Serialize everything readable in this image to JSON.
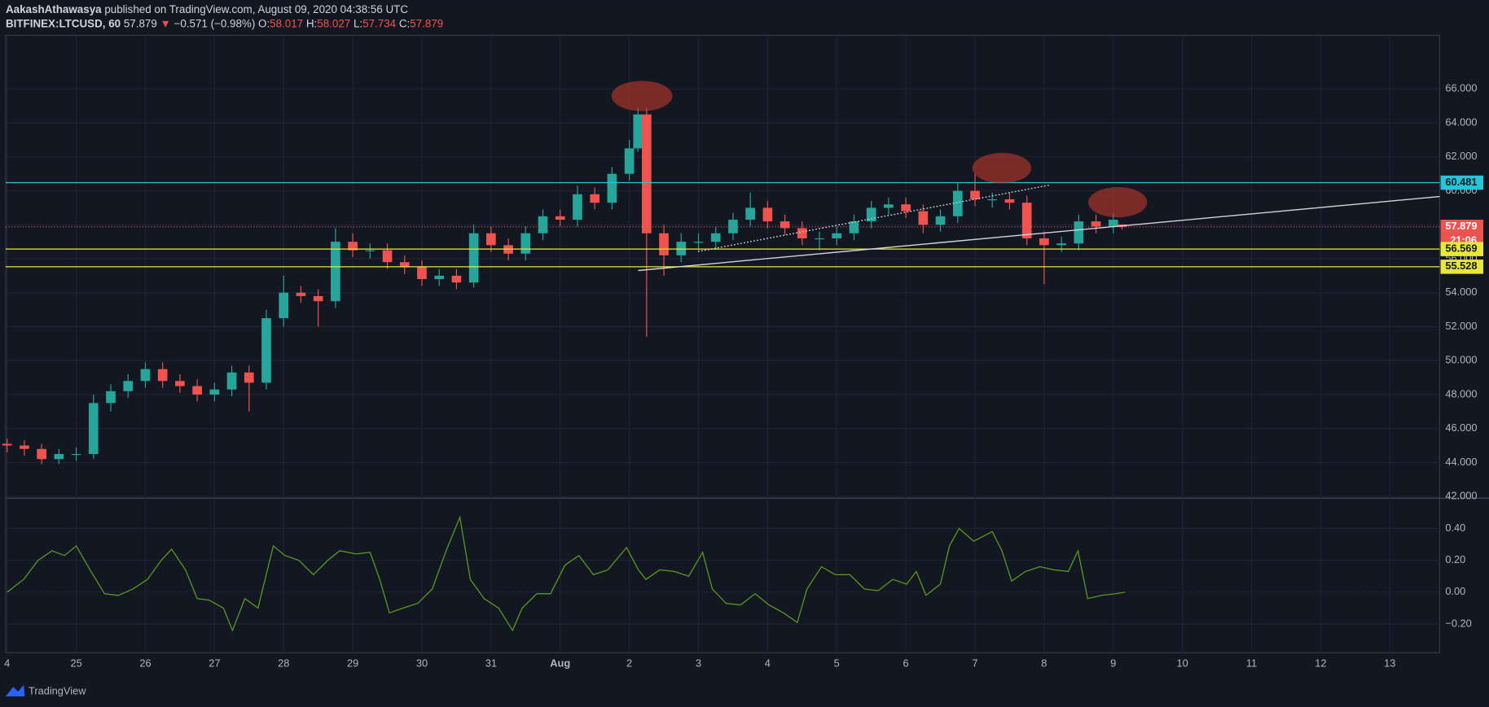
{
  "header": {
    "author": "AakashAthawasya",
    "published": "published on TradingView.com, August 09, 2020 04:38:56 UTC",
    "symbol": "BITFINEX:LTCUSD, 60",
    "last": "57.879",
    "arrow": "▼",
    "change": "−0.571 (−0.98%)",
    "o_label": "O:",
    "o": "58.017",
    "h_label": "H:",
    "h": "58.027",
    "l_label": "L:",
    "l": "57.734",
    "c_label": "C:",
    "c": "57.879"
  },
  "chart_data": [
    {
      "type": "candlestick",
      "up_color": "#26a69a",
      "down_color": "#ef5350",
      "xlim": [
        -0.02,
        20.72
      ],
      "ylim": [
        41.9,
        69.16
      ],
      "yticks": [
        {
          "value": 42,
          "label": "42.000"
        },
        {
          "value": 44,
          "label": "44.000"
        },
        {
          "value": 46,
          "label": "46.000"
        },
        {
          "value": 48,
          "label": "48.000"
        },
        {
          "value": 50,
          "label": "50.000"
        },
        {
          "value": 52,
          "label": "52.000"
        },
        {
          "value": 54,
          "label": "54.000"
        },
        {
          "value": 56,
          "label": "56.000"
        },
        {
          "value": 58,
          "label": "58.000"
        },
        {
          "value": 60,
          "label": "60.000"
        },
        {
          "value": 62,
          "label": "62.000"
        },
        {
          "value": 64,
          "label": "64.000"
        },
        {
          "value": 66,
          "label": "66.000"
        }
      ],
      "x": [
        0,
        0.25,
        0.5,
        0.75,
        1,
        1.25,
        1.5,
        1.75,
        2,
        2.25,
        2.5,
        2.75,
        3,
        3.25,
        3.5,
        3.75,
        4,
        4.25,
        4.5,
        4.75,
        5,
        5.25,
        5.5,
        5.75,
        6,
        6.25,
        6.5,
        6.75,
        7,
        7.25,
        7.5,
        7.75,
        8,
        8.25,
        8.5,
        8.75,
        9,
        9.125,
        9.25,
        9.5,
        9.75,
        10,
        10.25,
        10.5,
        10.75,
        11,
        11.25,
        11.5,
        11.75,
        12,
        12.25,
        12.5,
        12.75,
        13,
        13.25,
        13.5,
        13.75,
        14,
        14.25,
        14.5,
        14.75,
        15,
        15.25,
        15.5,
        15.75,
        16,
        16.125
      ],
      "open": [
        45.1,
        45.0,
        44.8,
        44.2,
        44.5,
        44.5,
        47.5,
        48.2,
        48.8,
        49.5,
        48.8,
        48.5,
        48.0,
        48.3,
        49.3,
        48.7,
        52.5,
        54.0,
        53.8,
        53.5,
        57.0,
        56.5,
        56.5,
        55.8,
        55.5,
        54.8,
        55.0,
        54.6,
        57.5,
        56.8,
        56.3,
        57.5,
        58.5,
        58.3,
        59.8,
        59.3,
        61.0,
        62.5,
        64.5,
        57.5,
        56.2,
        57.0,
        57.0,
        57.5,
        58.3,
        59.0,
        58.2,
        57.8,
        57.2,
        57.2,
        57.5,
        58.2,
        59.0,
        59.2,
        58.8,
        58.0,
        58.5,
        60.0,
        59.5,
        59.5,
        59.3,
        57.2,
        56.8,
        56.9,
        58.2,
        57.9,
        58.017
      ],
      "high": [
        45.4,
        45.3,
        45.1,
        44.8,
        44.9,
        48.0,
        48.6,
        49.2,
        49.9,
        49.9,
        49.2,
        48.9,
        48.7,
        49.7,
        49.7,
        53.0,
        55.0,
        54.4,
        54.2,
        57.8,
        57.5,
        56.9,
        56.9,
        56.2,
        55.9,
        55.4,
        55.4,
        58.0,
        57.9,
        57.2,
        57.9,
        58.9,
        58.9,
        60.3,
        60.2,
        61.4,
        63.0,
        64.9,
        64.9,
        58.0,
        57.5,
        57.5,
        57.9,
        58.7,
        59.9,
        59.4,
        58.6,
        58.2,
        57.6,
        57.9,
        58.6,
        59.4,
        59.6,
        59.6,
        59.2,
        58.9,
        60.5,
        61.0,
        59.9,
        59.9,
        59.7,
        57.6,
        57.3,
        58.6,
        58.6,
        58.7,
        58.027
      ],
      "low": [
        44.6,
        44.4,
        43.9,
        43.9,
        44.1,
        44.2,
        47.0,
        47.8,
        48.4,
        48.4,
        48.1,
        47.6,
        47.6,
        47.9,
        47.0,
        48.3,
        52.0,
        53.4,
        52.0,
        53.1,
        56.1,
        56.0,
        55.4,
        55.1,
        54.4,
        54.4,
        54.2,
        54.3,
        56.4,
        55.9,
        55.9,
        57.1,
        57.9,
        57.9,
        58.9,
        58.9,
        60.6,
        62.3,
        51.4,
        55.0,
        55.8,
        56.5,
        56.6,
        57.1,
        57.9,
        57.8,
        57.4,
        56.8,
        56.5,
        56.8,
        57.1,
        57.8,
        58.6,
        58.4,
        57.5,
        57.6,
        58.1,
        59.1,
        59.0,
        58.9,
        56.8,
        54.5,
        56.4,
        56.5,
        57.5,
        57.5,
        57.734
      ],
      "close": [
        45.0,
        44.8,
        44.2,
        44.5,
        44.5,
        47.5,
        48.2,
        48.8,
        49.5,
        48.8,
        48.5,
        48.0,
        48.3,
        49.3,
        48.7,
        52.5,
        54.0,
        53.8,
        53.5,
        57.0,
        56.5,
        56.5,
        55.8,
        55.5,
        54.8,
        55.0,
        54.6,
        57.5,
        56.8,
        56.3,
        57.5,
        58.5,
        58.3,
        59.8,
        59.3,
        61.0,
        62.5,
        64.5,
        57.5,
        56.2,
        57.0,
        57.0,
        57.5,
        58.3,
        59.0,
        58.2,
        57.8,
        57.2,
        57.2,
        57.5,
        58.2,
        59.0,
        59.2,
        58.8,
        58.0,
        58.5,
        60.0,
        59.5,
        59.5,
        59.3,
        57.2,
        56.8,
        56.9,
        58.2,
        57.9,
        58.3,
        57.879
      ],
      "levels": [
        {
          "value": 60.481,
          "color": "#26c6da",
          "text_color": "#131722",
          "dash": "none"
        },
        {
          "value": 57.879,
          "color": "#ef5350",
          "text_color": "#ffffff",
          "dash": "1 2",
          "countdown": "21:06"
        },
        {
          "value": 56.569,
          "color": "#e8e83a",
          "text_color": "#131722",
          "dash": "none"
        },
        {
          "value": 55.528,
          "color": "#e8e83a",
          "text_color": "#131722",
          "dash": "none"
        }
      ]
    },
    {
      "type": "line",
      "color": "#5b9a1e",
      "xlim": [
        -0.02,
        20.72
      ],
      "ylim": [
        -0.38,
        0.59
      ],
      "yticks": [
        {
          "value": -0.2,
          "label": "−0.20"
        },
        {
          "value": 0,
          "label": "0.00"
        },
        {
          "value": 0.2,
          "label": "0.20"
        },
        {
          "value": 0.4,
          "label": "0.40"
        }
      ],
      "xticks": [
        {
          "value": 0,
          "label": "4"
        },
        {
          "value": 1,
          "label": "25"
        },
        {
          "value": 2,
          "label": "26"
        },
        {
          "value": 3,
          "label": "27"
        },
        {
          "value": 4,
          "label": "28"
        },
        {
          "value": 5,
          "label": "29"
        },
        {
          "value": 6,
          "label": "30"
        },
        {
          "value": 7,
          "label": "31"
        },
        {
          "value": 8,
          "label": "Aug"
        },
        {
          "value": 9,
          "label": "2"
        },
        {
          "value": 10,
          "label": "3"
        },
        {
          "value": 11,
          "label": "4"
        },
        {
          "value": 12,
          "label": "5"
        },
        {
          "value": 13,
          "label": "6"
        },
        {
          "value": 14,
          "label": "7"
        },
        {
          "value": 15,
          "label": "8"
        },
        {
          "value": 16,
          "label": "9"
        },
        {
          "value": 17,
          "label": "10"
        },
        {
          "value": 18,
          "label": "11"
        },
        {
          "value": 19,
          "label": "12"
        },
        {
          "value": 20,
          "label": "13"
        }
      ],
      "x": [
        0,
        0.24,
        0.45,
        0.65,
        0.83,
        1.0,
        1.2,
        1.41,
        1.61,
        1.82,
        2.03,
        2.23,
        2.38,
        2.58,
        2.75,
        2.92,
        3.13,
        3.26,
        3.44,
        3.63,
        3.85,
        4.02,
        4.22,
        4.43,
        4.64,
        4.81,
        5.05,
        5.25,
        5.39,
        5.53,
        5.73,
        5.94,
        6.15,
        6.35,
        6.55,
        6.7,
        6.9,
        7.11,
        7.31,
        7.45,
        7.66,
        7.86,
        8.07,
        8.27,
        8.48,
        8.69,
        8.96,
        9.13,
        9.24,
        9.44,
        9.65,
        9.86,
        10.06,
        10.2,
        10.4,
        10.61,
        10.82,
        11.02,
        11.23,
        11.43,
        11.57,
        11.78,
        11.98,
        12.19,
        12.4,
        12.6,
        12.81,
        13.01,
        13.15,
        13.29,
        13.5,
        13.63,
        13.77,
        13.98,
        14.25,
        14.39,
        14.53,
        14.73,
        14.94,
        15.14,
        15.35,
        15.49,
        15.63,
        15.83,
        16.04,
        16.17
      ],
      "values": [
        0,
        0.08,
        0.2,
        0.26,
        0.23,
        0.29,
        0.14,
        -0.01,
        -0.02,
        0.02,
        0.08,
        0.2,
        0.27,
        0.14,
        -0.04,
        -0.05,
        -0.1,
        -0.24,
        -0.04,
        -0.1,
        0.29,
        0.23,
        0.2,
        0.11,
        0.2,
        0.26,
        0.24,
        0.25,
        0.08,
        -0.13,
        -0.1,
        -0.07,
        0.02,
        0.26,
        0.47,
        0.08,
        -0.04,
        -0.1,
        -0.24,
        -0.1,
        -0.01,
        -0.01,
        0.17,
        0.23,
        0.11,
        0.14,
        0.28,
        0.14,
        0.08,
        0.14,
        0.13,
        0.1,
        0.25,
        0.02,
        -0.07,
        -0.08,
        -0.01,
        -0.08,
        -0.13,
        -0.19,
        0.02,
        0.16,
        0.11,
        0.11,
        0.02,
        0.01,
        0.08,
        0.05,
        0.13,
        -0.02,
        0.05,
        0.29,
        0.4,
        0.32,
        0.38,
        0.26,
        0.07,
        0.13,
        0.16,
        0.14,
        0.13,
        0.26,
        -0.04,
        -0.02,
        -0.01,
        0
      ]
    }
  ],
  "footer": {
    "brand": "TradingView"
  }
}
